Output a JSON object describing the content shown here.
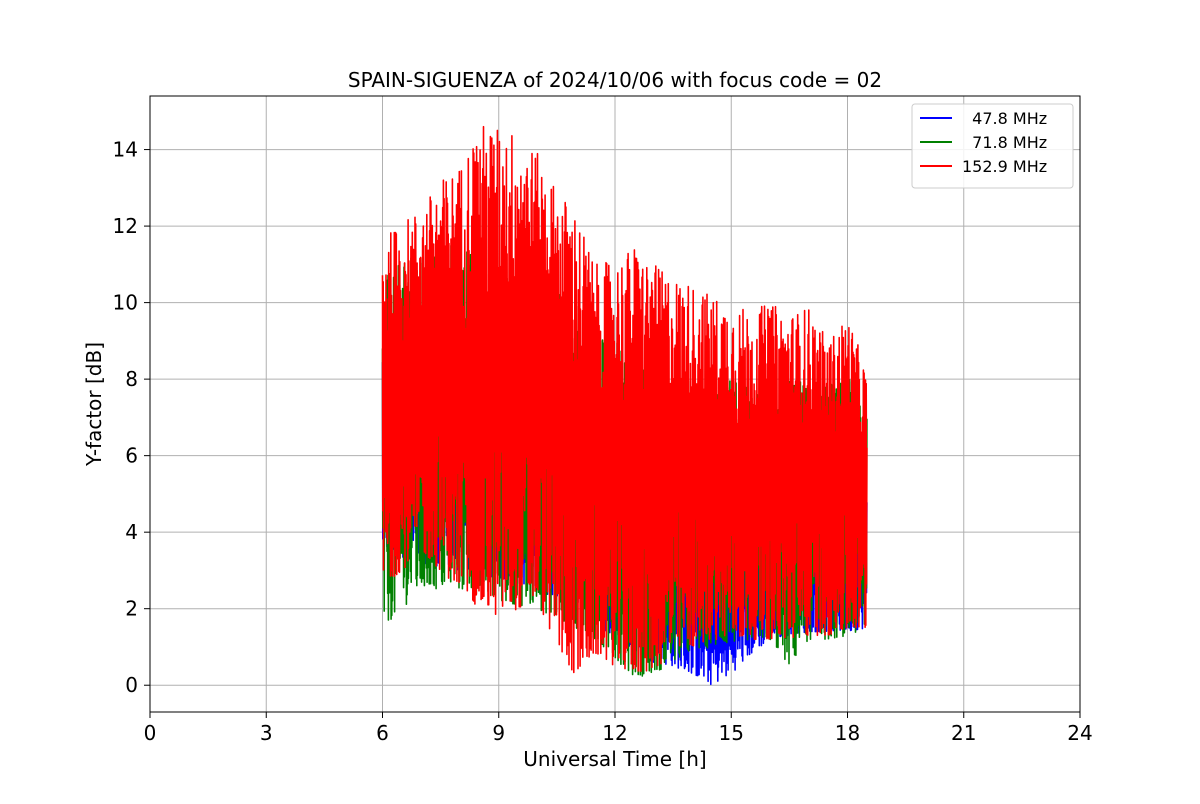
{
  "chart_data": {
    "type": "line",
    "title": "SPAIN-SIGUENZA of 2024/10/06 with focus code = 02",
    "xlabel": "Universal Time [h]",
    "ylabel": "Y-factor [dB]",
    "xlim": [
      0,
      24
    ],
    "ylim": [
      -0.7,
      15.4
    ],
    "xticks": [
      0,
      3,
      6,
      9,
      12,
      15,
      18,
      21,
      24
    ],
    "yticks": [
      0,
      2,
      4,
      6,
      8,
      10,
      12,
      14
    ],
    "grid": true,
    "legend_position": "top-right",
    "series": [
      {
        "name": "  47.8 MHz",
        "color": "#0000ff",
        "x": [
          6.0,
          7.0,
          8.0,
          9.0,
          10.0,
          11.0,
          12.0,
          12.5,
          13.0,
          13.5,
          14.0,
          14.5,
          15.0,
          15.5,
          16.0,
          16.5,
          17.0,
          17.5,
          18.0,
          18.5
        ],
        "ymin": [
          3.5,
          3.2,
          3.0,
          2.8,
          2.5,
          2.0,
          1.2,
          0.8,
          0.6,
          0.5,
          0.3,
          0.0,
          0.3,
          0.8,
          1.2,
          1.3,
          1.4,
          1.4,
          1.4,
          1.5
        ],
        "ymax": [
          9.0,
          9.0,
          9.0,
          8.5,
          8.0,
          7.5,
          6.5,
          6.0,
          5.5,
          5.0,
          4.5,
          4.5,
          5.0,
          5.0,
          5.0,
          5.0,
          5.0,
          5.0,
          5.0,
          5.0
        ]
      },
      {
        "name": "  71.8 MHz",
        "color": "#008000",
        "x": [
          6.0,
          7.0,
          8.0,
          9.0,
          10.0,
          11.0,
          12.0,
          12.5,
          13.0,
          13.5,
          14.0,
          14.5,
          15.0,
          15.5,
          16.0,
          16.5,
          17.0,
          17.5,
          18.0,
          18.5
        ],
        "ymin": [
          1.5,
          2.5,
          2.5,
          2.2,
          2.0,
          1.5,
          0.7,
          0.2,
          0.3,
          0.6,
          0.9,
          1.0,
          1.1,
          1.2,
          1.2,
          0.5,
          1.2,
          1.2,
          1.3,
          1.4
        ],
        "ymax": [
          11.0,
          11.5,
          11.5,
          11.0,
          10.5,
          10.0,
          9.0,
          8.5,
          8.0,
          8.0,
          8.0,
          8.0,
          8.0,
          8.0,
          8.0,
          8.0,
          8.0,
          8.0,
          8.0,
          8.0
        ]
      },
      {
        "name": "152.9 MHz",
        "color": "#ff0000",
        "x": [
          6.0,
          6.5,
          7.0,
          7.5,
          8.0,
          8.5,
          9.0,
          9.5,
          10.0,
          10.5,
          11.0,
          11.5,
          12.0,
          12.5,
          13.0,
          13.5,
          14.0,
          14.5,
          15.0,
          15.5,
          16.0,
          16.5,
          17.0,
          17.5,
          18.0,
          18.5
        ],
        "ymin": [
          2.6,
          3.0,
          3.5,
          3.0,
          2.5,
          2.0,
          1.8,
          2.0,
          2.2,
          1.0,
          0.2,
          0.8,
          0.5,
          0.3,
          0.4,
          0.8,
          1.0,
          1.2,
          1.2,
          1.2,
          1.2,
          1.2,
          1.3,
          1.3,
          1.4,
          1.4
        ],
        "ymax": [
          11.7,
          12.1,
          12.5,
          13.2,
          13.6,
          14.7,
          14.6,
          14.5,
          13.9,
          13.0,
          12.4,
          11.0,
          11.1,
          11.5,
          11.0,
          10.7,
          10.5,
          10.2,
          10.0,
          9.8,
          10.0,
          9.7,
          9.9,
          9.0,
          9.7,
          8.2
        ]
      }
    ]
  }
}
